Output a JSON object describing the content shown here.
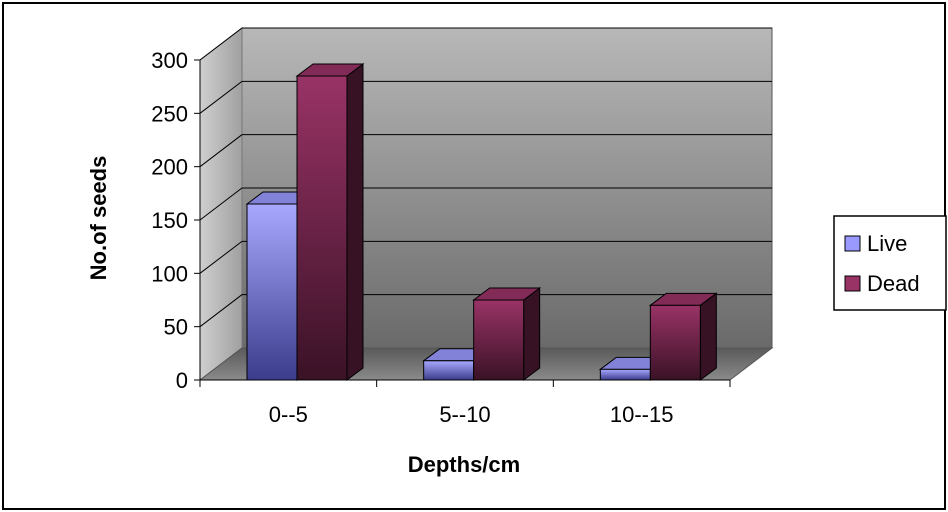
{
  "chart_data": {
    "type": "bar",
    "style": "3d-clustered-column",
    "categories": [
      "0--5",
      "5--10",
      "10--15"
    ],
    "series": [
      {
        "name": "Live",
        "values": [
          165,
          18,
          10
        ],
        "color": "#9999ff"
      },
      {
        "name": "Dead",
        "values": [
          285,
          75,
          70
        ],
        "color": "#993366"
      }
    ],
    "xlabel": "Depths/cm",
    "ylabel": "No.of seeds",
    "ylim": [
      0,
      300
    ],
    "yticks": [
      "0",
      "50",
      "100",
      "150",
      "200",
      "250",
      "300"
    ],
    "grid": true,
    "legend": "right"
  }
}
